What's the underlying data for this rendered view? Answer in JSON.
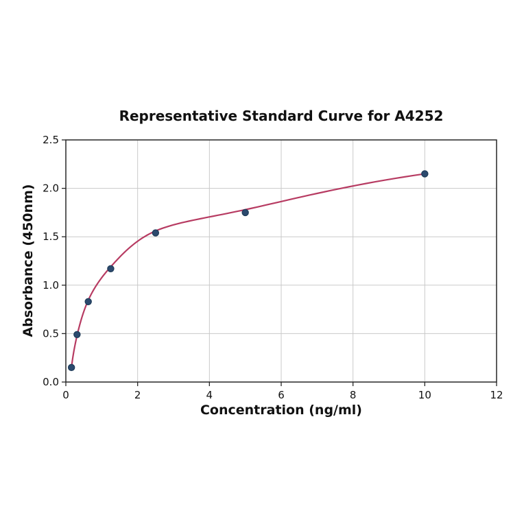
{
  "chart_data": {
    "type": "scatter",
    "title": "Representative Standard Curve for A4252",
    "xlabel": "Concentration (ng/ml)",
    "ylabel": "Absorbance (450nm)",
    "xlim": [
      0,
      12
    ],
    "ylim": [
      0,
      2.5
    ],
    "xticks": [
      0,
      2,
      4,
      6,
      8,
      10,
      12
    ],
    "xticklabels": [
      "0",
      "2",
      "4",
      "6",
      "8",
      "10",
      "12"
    ],
    "yticks": [
      0,
      0.5,
      1.0,
      1.5,
      2.0,
      2.5
    ],
    "yticklabels": [
      "0.0",
      "0.5",
      "1.0",
      "1.5",
      "2.0",
      "2.5"
    ],
    "grid": true,
    "legend": "none",
    "points": [
      {
        "x": 0.156,
        "y": 0.15
      },
      {
        "x": 0.3125,
        "y": 0.49
      },
      {
        "x": 0.625,
        "y": 0.83
      },
      {
        "x": 1.25,
        "y": 1.17
      },
      {
        "x": 2.5,
        "y": 1.54
      },
      {
        "x": 5,
        "y": 1.75
      },
      {
        "x": 10,
        "y": 2.15
      }
    ],
    "fit_curve": {
      "x": [
        0.156,
        0.3125,
        0.625,
        1.25,
        2.5,
        5,
        10
      ],
      "y": [
        0.15,
        0.48,
        0.845,
        1.19,
        1.56,
        1.78,
        2.15
      ]
    },
    "colors": {
      "curve": "#b73b62",
      "marker_fill": "#2c4a6e",
      "marker_edge": "#1d3a57",
      "grid": "#c9c9c9",
      "frame": "#262626",
      "text": "#111111",
      "background": "#ffffff"
    }
  }
}
